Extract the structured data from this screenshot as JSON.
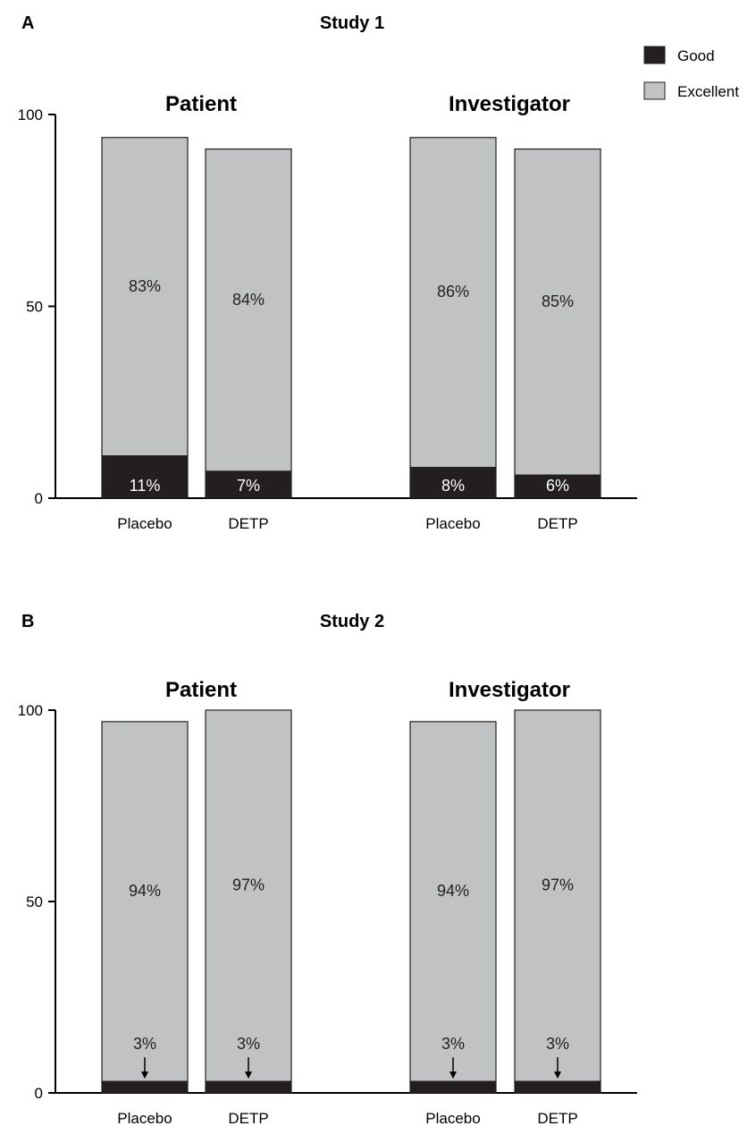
{
  "colors": {
    "Good": "#231f20",
    "Excellent": "#c1c2c4",
    "outline": "#231f20"
  },
  "legend": [
    {
      "name": "Good",
      "color": "#231f20"
    },
    {
      "name": "Excellent",
      "color": "#c1c2c4"
    }
  ],
  "chart_data": [
    {
      "type": "bar",
      "stacked": true,
      "panel": "A",
      "title": "Study 1",
      "ylim": [
        0,
        100
      ],
      "yticks": [
        0,
        50,
        100
      ],
      "groups": [
        {
          "name": "Patient",
          "bars": [
            {
              "category": "Placebo",
              "Good": 11,
              "Excellent": 83,
              "good_label": "11%",
              "excellent_label": "83%"
            },
            {
              "category": "DETP",
              "Good": 7,
              "Excellent": 84,
              "good_label": "7%",
              "excellent_label": "84%"
            }
          ]
        },
        {
          "name": "Investigator",
          "bars": [
            {
              "category": "Placebo",
              "Good": 8,
              "Excellent": 86,
              "good_label": "8%",
              "excellent_label": "86%"
            },
            {
              "category": "DETP",
              "Good": 6,
              "Excellent": 85,
              "good_label": "6%",
              "excellent_label": "85%"
            }
          ]
        }
      ]
    },
    {
      "type": "bar",
      "stacked": true,
      "panel": "B",
      "title": "Study 2",
      "ylim": [
        0,
        100
      ],
      "yticks": [
        0,
        50,
        100
      ],
      "groups": [
        {
          "name": "Patient",
          "bars": [
            {
              "category": "Placebo",
              "Good": 3,
              "Excellent": 94,
              "good_label": "3%",
              "excellent_label": "94%"
            },
            {
              "category": "DETP",
              "Good": 3,
              "Excellent": 97,
              "good_label": "3%",
              "excellent_label": "97%"
            }
          ]
        },
        {
          "name": "Investigator",
          "bars": [
            {
              "category": "Placebo",
              "Good": 3,
              "Excellent": 94,
              "good_label": "3%",
              "excellent_label": "94%"
            },
            {
              "category": "DETP",
              "Good": 3,
              "Excellent": 97,
              "good_label": "3%",
              "excellent_label": "97%"
            }
          ]
        }
      ]
    }
  ]
}
